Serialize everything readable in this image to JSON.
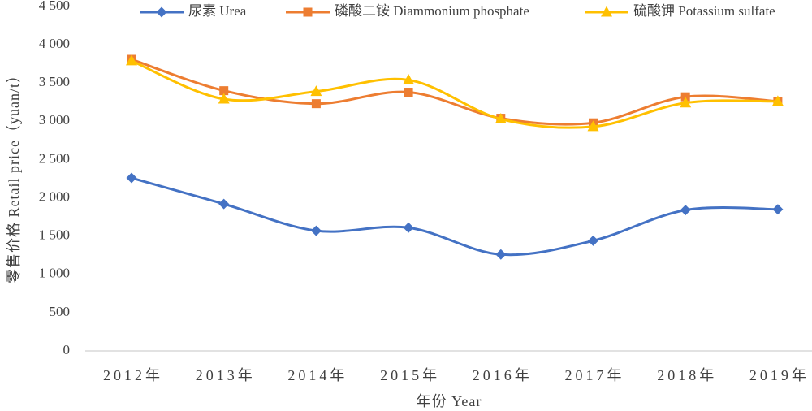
{
  "chart_data": {
    "type": "line",
    "smooth": true,
    "xlabel": "年份 Year",
    "ylabel": "零售价格 Retail price（yuan/t）",
    "categories": [
      "2012年",
      "2013年",
      "2014年",
      "2015年",
      "2016年",
      "2017年",
      "2018年",
      "2019年"
    ],
    "ylim": [
      0,
      4500
    ],
    "yticks": [
      0,
      500,
      1000,
      1500,
      2000,
      2500,
      3000,
      3500,
      4000,
      4500
    ],
    "ytick_labels": [
      "0",
      "500",
      "1 000",
      "1 500",
      "2 000",
      "2 500",
      "3 000",
      "3 500",
      "4 000",
      "4 500"
    ],
    "grid": false,
    "legend": "top",
    "series": [
      {
        "name": "尿素 Urea",
        "color": "#4472C4",
        "marker": "diamond",
        "values": [
          2260,
          1920,
          1570,
          1610,
          1260,
          1440,
          1840,
          1850
        ]
      },
      {
        "name": "磷酸二铵 Diammonium phosphate",
        "color": "#ED7D31",
        "marker": "square",
        "values": [
          3810,
          3400,
          3230,
          3380,
          3040,
          2980,
          3320,
          3260
        ]
      },
      {
        "name": "硫酸钾 Potassium sulfate",
        "color": "#FFC000",
        "marker": "triangle",
        "values": [
          3790,
          3290,
          3390,
          3540,
          3030,
          2930,
          3240,
          3260
        ]
      }
    ]
  }
}
